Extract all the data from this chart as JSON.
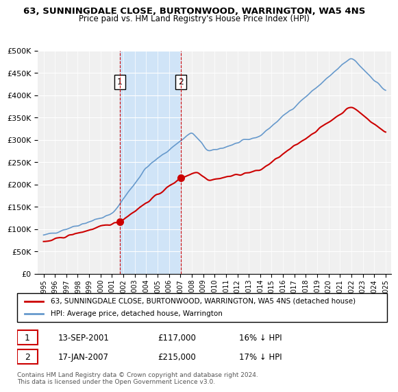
{
  "title": "63, SUNNINGDALE CLOSE, BURTONWOOD, WARRINGTON, WA5 4NS",
  "subtitle": "Price paid vs. HM Land Registry's House Price Index (HPI)",
  "background_color": "#ffffff",
  "plot_bg_color": "#f0f0f0",
  "legend_line1": "63, SUNNINGDALE CLOSE, BURTONWOOD, WARRINGTON, WA5 4NS (detached house)",
  "legend_line2": "HPI: Average price, detached house, Warrington",
  "transaction1_date": "13-SEP-2001",
  "transaction1_price": "£117,000",
  "transaction1_hpi": "16% ↓ HPI",
  "transaction2_date": "17-JAN-2007",
  "transaction2_price": "£215,000",
  "transaction2_hpi": "17% ↓ HPI",
  "footer": "Contains HM Land Registry data © Crown copyright and database right 2024.\nThis data is licensed under the Open Government Licence v3.0.",
  "red_color": "#cc0000",
  "blue_color": "#6699cc",
  "shaded_color": "#d0e4f7",
  "vline_color": "#cc0000",
  "ylim": [
    0,
    500000
  ],
  "yticks": [
    0,
    50000,
    100000,
    150000,
    200000,
    250000,
    300000,
    350000,
    400000,
    450000,
    500000
  ]
}
